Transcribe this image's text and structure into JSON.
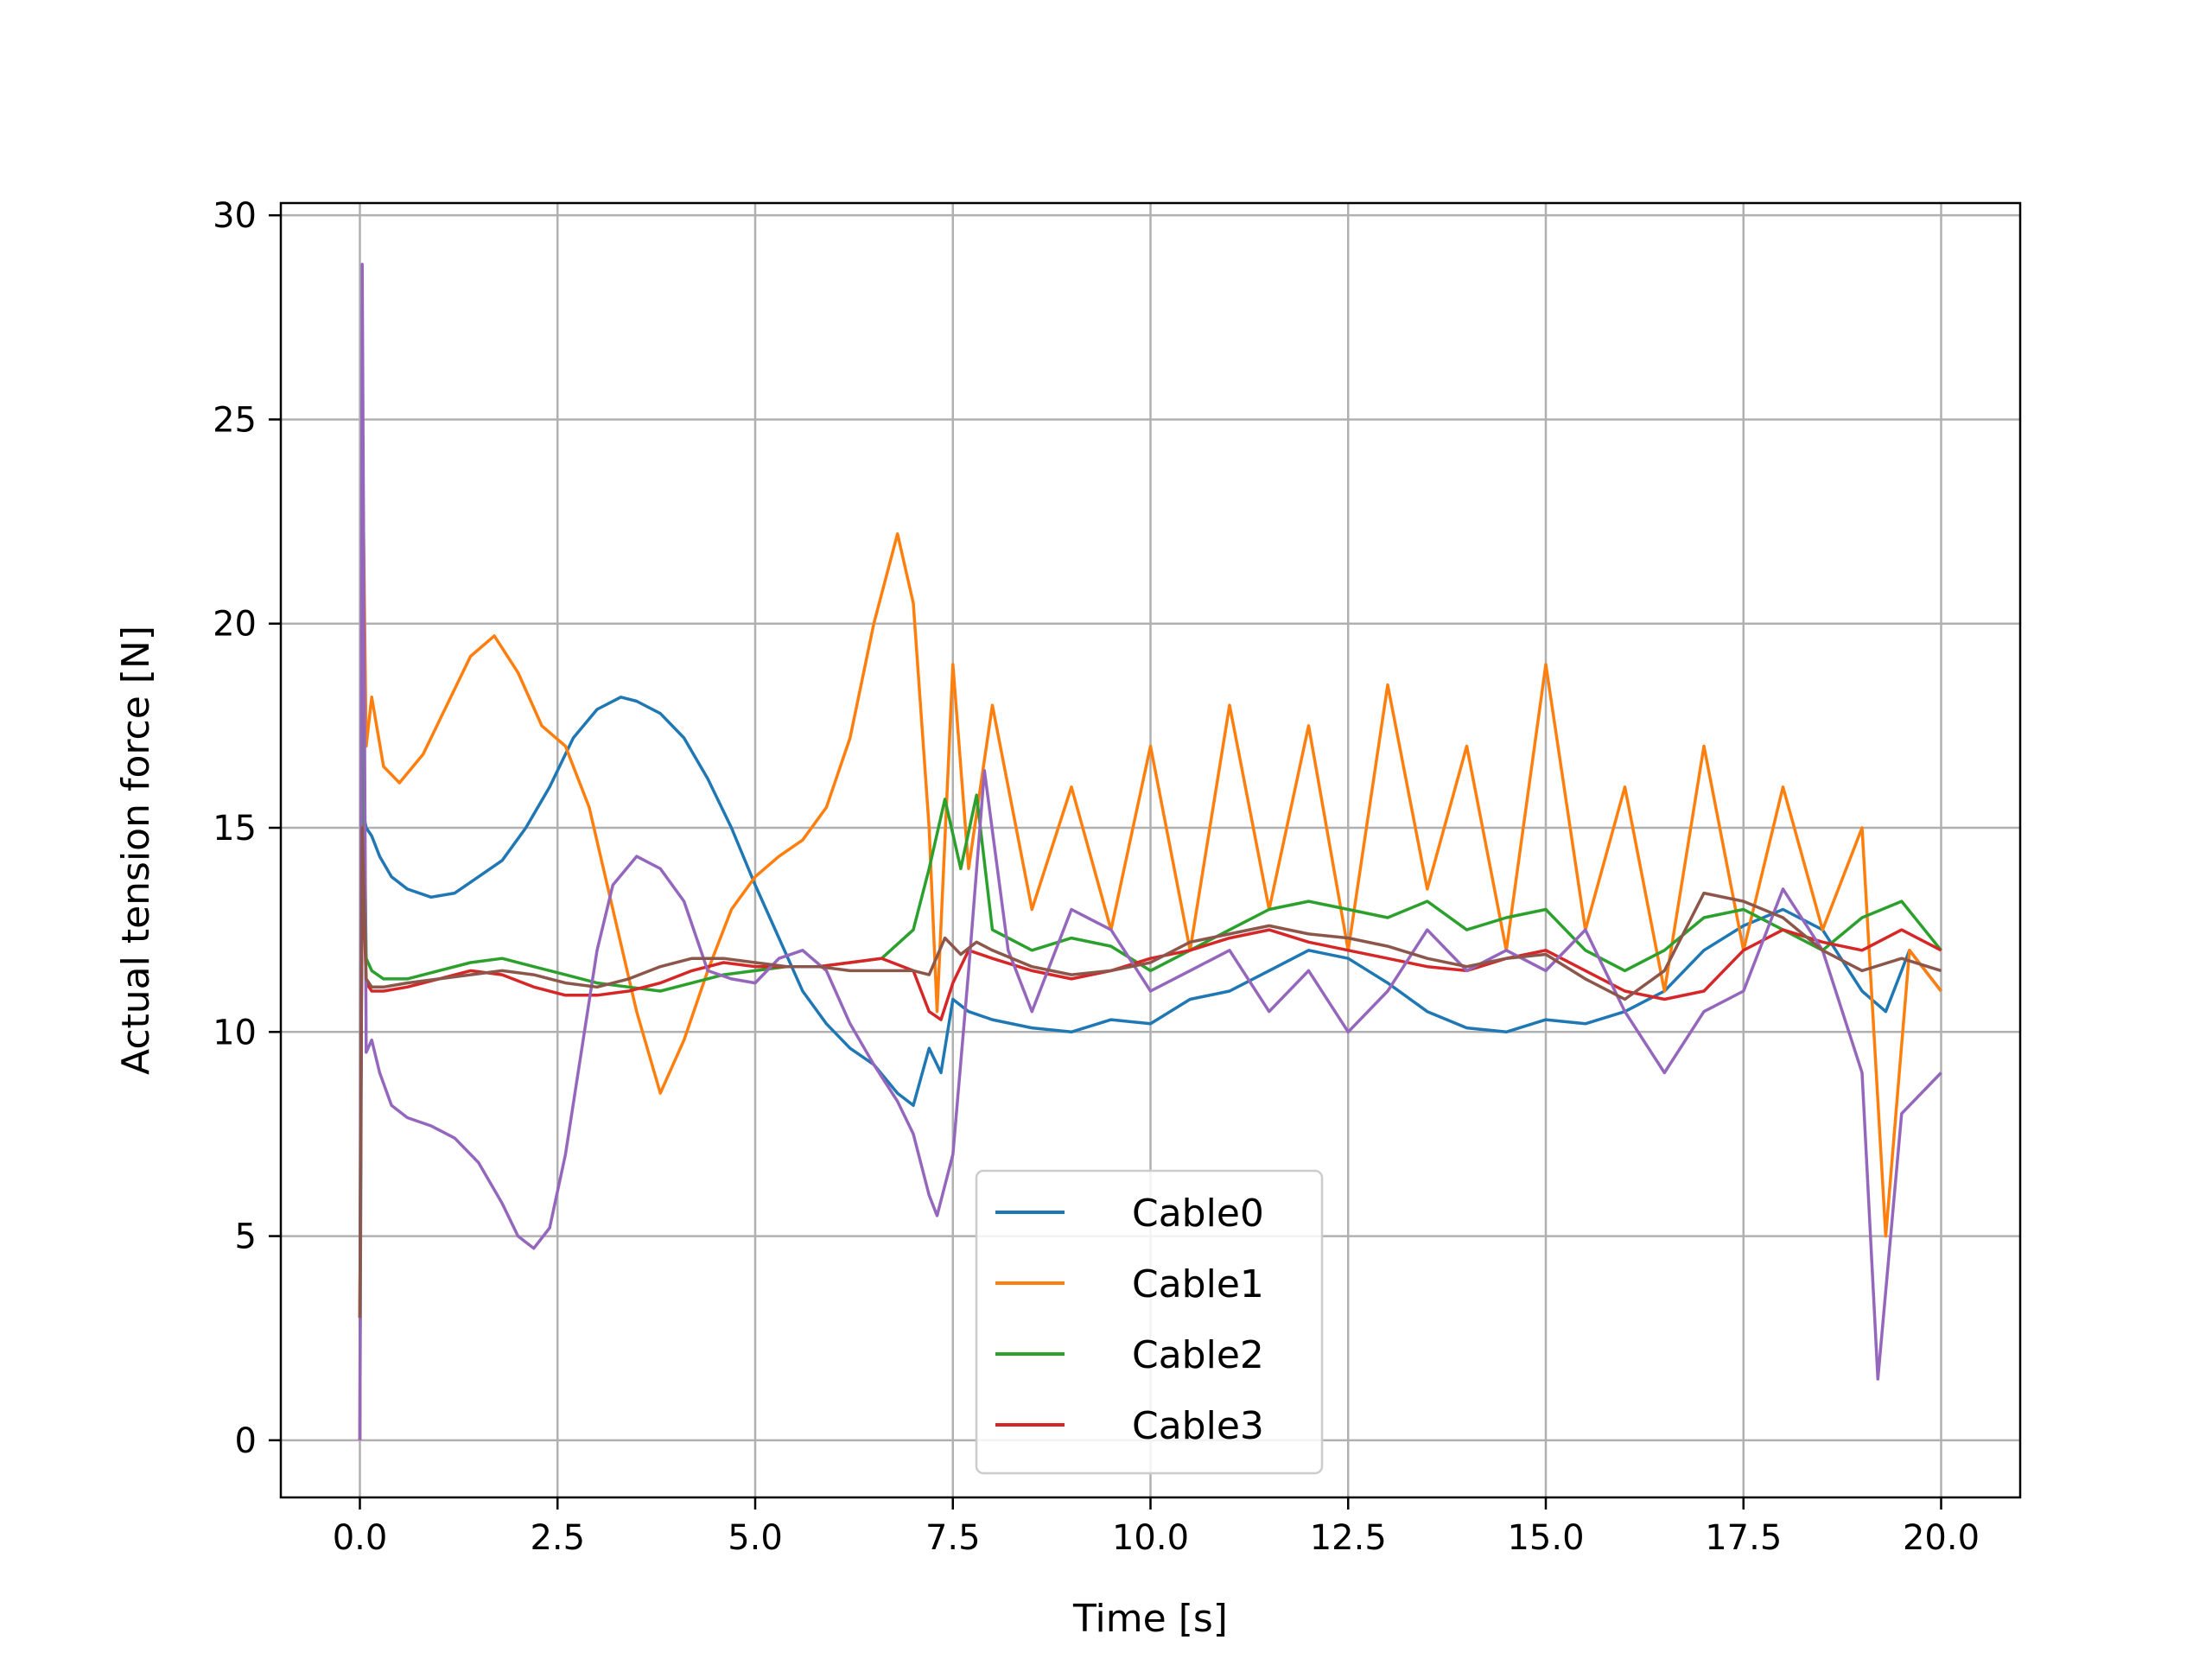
{
  "chart_data": {
    "type": "line",
    "title": "",
    "xlabel": "Time [s]",
    "ylabel": "Actual tension force [N]",
    "xlim": [
      -1.0,
      21.0
    ],
    "ylim": [
      -1.4,
      30.3
    ],
    "xticks": [
      0.0,
      2.5,
      5.0,
      7.5,
      10.0,
      12.5,
      15.0,
      17.5,
      20.0
    ],
    "xtick_labels": [
      "0.0",
      "2.5",
      "5.0",
      "7.5",
      "10.0",
      "12.5",
      "15.0",
      "17.5",
      "20.0"
    ],
    "yticks": [
      0,
      5,
      10,
      15,
      20,
      25,
      30
    ],
    "ytick_labels": [
      "0",
      "5",
      "10",
      "15",
      "20",
      "25",
      "30"
    ],
    "grid": true,
    "legend_position": "lower-center",
    "legend": [
      "Cable0",
      "Cable1",
      "Cable2",
      "Cable3"
    ],
    "series": [
      {
        "name": "Cable0",
        "color": "#1f77b4",
        "x": [
          0.0,
          0.03,
          0.08,
          0.15,
          0.25,
          0.4,
          0.6,
          0.9,
          1.2,
          1.5,
          1.8,
          2.1,
          2.4,
          2.7,
          3.0,
          3.3,
          3.5,
          3.8,
          4.1,
          4.4,
          4.7,
          5.0,
          5.3,
          5.6,
          5.9,
          6.2,
          6.5,
          6.8,
          7.0,
          7.2,
          7.35,
          7.5,
          7.7,
          8.0,
          8.5,
          9.0,
          9.5,
          10.0,
          10.5,
          11.0,
          11.5,
          12.0,
          12.5,
          13.0,
          13.5,
          14.0,
          14.5,
          15.0,
          15.5,
          16.0,
          16.5,
          17.0,
          17.5,
          18.0,
          18.5,
          19.0,
          19.3,
          19.6,
          20.0
        ],
        "y": [
          0.0,
          15.5,
          15.0,
          14.8,
          14.3,
          13.8,
          13.5,
          13.3,
          13.4,
          13.8,
          14.2,
          15.0,
          16.0,
          17.2,
          17.9,
          18.2,
          18.1,
          17.8,
          17.2,
          16.2,
          15.0,
          13.6,
          12.3,
          11.0,
          10.2,
          9.6,
          9.2,
          8.5,
          8.2,
          9.6,
          9.0,
          10.8,
          10.5,
          10.3,
          10.1,
          10.0,
          10.3,
          10.2,
          10.8,
          11.0,
          11.5,
          12.0,
          11.8,
          11.2,
          10.5,
          10.1,
          10.0,
          10.3,
          10.2,
          10.5,
          11.0,
          12.0,
          12.6,
          13.0,
          12.5,
          11.0,
          10.5,
          12.0,
          11.0
        ]
      },
      {
        "name": "Cable1",
        "color": "#ff7f0e",
        "x": [
          0.0,
          0.03,
          0.08,
          0.15,
          0.3,
          0.5,
          0.8,
          1.1,
          1.4,
          1.7,
          2.0,
          2.3,
          2.6,
          2.9,
          3.2,
          3.5,
          3.8,
          4.1,
          4.4,
          4.7,
          5.0,
          5.3,
          5.6,
          5.9,
          6.2,
          6.5,
          6.8,
          7.0,
          7.2,
          7.3,
          7.5,
          7.7,
          8.0,
          8.5,
          9.0,
          9.5,
          10.0,
          10.5,
          11.0,
          11.5,
          12.0,
          12.5,
          13.0,
          13.5,
          14.0,
          14.5,
          15.0,
          15.5,
          16.0,
          16.5,
          17.0,
          17.5,
          18.0,
          18.5,
          19.0,
          19.3,
          19.6,
          20.0
        ],
        "y": [
          0.0,
          25.0,
          17.0,
          18.2,
          16.5,
          16.1,
          16.8,
          18.0,
          19.2,
          19.7,
          18.8,
          17.5,
          17.0,
          15.5,
          13.0,
          10.5,
          8.5,
          9.8,
          11.5,
          13.0,
          13.8,
          14.3,
          14.7,
          15.5,
          17.2,
          20.0,
          22.2,
          20.5,
          15.0,
          10.5,
          19.0,
          14.0,
          18.0,
          13.0,
          16.0,
          12.5,
          17.0,
          12.0,
          18.0,
          13.0,
          17.5,
          12.0,
          18.5,
          13.5,
          17.0,
          12.0,
          19.0,
          12.5,
          16.0,
          11.0,
          17.0,
          12.0,
          16.0,
          12.5,
          15.0,
          5.0,
          12.0,
          11.0
        ]
      },
      {
        "name": "Cable2",
        "color": "#2ca02c",
        "x": [
          0.0,
          0.03,
          0.08,
          0.15,
          0.3,
          0.6,
          1.0,
          1.4,
          1.8,
          2.2,
          2.6,
          3.0,
          3.4,
          3.8,
          4.2,
          4.6,
          5.0,
          5.4,
          5.8,
          6.2,
          6.6,
          7.0,
          7.2,
          7.4,
          7.6,
          7.8,
          8.0,
          8.5,
          9.0,
          9.5,
          10.0,
          10.5,
          11.0,
          11.5,
          12.0,
          12.5,
          13.0,
          13.5,
          14.0,
          14.5,
          15.0,
          15.5,
          16.0,
          16.5,
          17.0,
          17.5,
          18.0,
          18.5,
          19.0,
          19.5,
          20.0
        ],
        "y": [
          3.0,
          19.5,
          11.8,
          11.5,
          11.3,
          11.3,
          11.5,
          11.7,
          11.8,
          11.6,
          11.4,
          11.2,
          11.1,
          11.0,
          11.2,
          11.4,
          11.5,
          11.6,
          11.6,
          11.7,
          11.8,
          12.5,
          14.0,
          15.7,
          14.0,
          15.8,
          12.5,
          12.0,
          12.3,
          12.1,
          11.5,
          12.0,
          12.5,
          13.0,
          13.2,
          13.0,
          12.8,
          13.2,
          12.5,
          12.8,
          13.0,
          12.0,
          11.5,
          12.0,
          12.8,
          13.0,
          12.5,
          12.0,
          12.8,
          13.2,
          12.0
        ]
      },
      {
        "name": "Cable3",
        "color": "#d62728",
        "x": [
          0.0,
          0.03,
          0.08,
          0.15,
          0.3,
          0.6,
          1.0,
          1.4,
          1.8,
          2.2,
          2.6,
          3.0,
          3.4,
          3.8,
          4.2,
          4.6,
          5.0,
          5.4,
          5.8,
          6.2,
          6.6,
          7.0,
          7.2,
          7.35,
          7.5,
          7.7,
          8.0,
          8.5,
          9.0,
          9.5,
          10.0,
          10.5,
          11.0,
          11.5,
          12.0,
          12.5,
          13.0,
          13.5,
          14.0,
          14.5,
          15.0,
          15.5,
          16.0,
          16.5,
          17.0,
          17.5,
          18.0,
          18.5,
          19.0,
          19.5,
          20.0
        ],
        "y": [
          3.0,
          14.5,
          11.2,
          11.0,
          11.0,
          11.1,
          11.3,
          11.5,
          11.4,
          11.1,
          10.9,
          10.9,
          11.0,
          11.2,
          11.5,
          11.7,
          11.6,
          11.6,
          11.6,
          11.7,
          11.8,
          11.5,
          10.5,
          10.3,
          11.2,
          12.0,
          11.8,
          11.5,
          11.3,
          11.5,
          11.8,
          12.0,
          12.3,
          12.5,
          12.2,
          12.0,
          11.8,
          11.6,
          11.5,
          11.8,
          12.0,
          11.5,
          11.0,
          10.8,
          11.0,
          12.0,
          12.5,
          12.2,
          12.0,
          12.5,
          12.0
        ]
      },
      {
        "name": "",
        "color": "#9467bd",
        "x": [
          0.0,
          0.03,
          0.08,
          0.15,
          0.25,
          0.4,
          0.6,
          0.9,
          1.2,
          1.5,
          1.8,
          2.0,
          2.2,
          2.4,
          2.6,
          2.8,
          3.0,
          3.2,
          3.5,
          3.8,
          4.1,
          4.4,
          4.7,
          5.0,
          5.3,
          5.6,
          5.9,
          6.2,
          6.5,
          6.8,
          7.0,
          7.2,
          7.3,
          7.5,
          7.7,
          7.9,
          8.2,
          8.5,
          9.0,
          9.5,
          10.0,
          10.5,
          11.0,
          11.5,
          12.0,
          12.5,
          13.0,
          13.5,
          14.0,
          14.5,
          15.0,
          15.5,
          16.0,
          16.5,
          17.0,
          17.5,
          18.0,
          18.5,
          19.0,
          19.2,
          19.5,
          20.0
        ],
        "y": [
          0.0,
          28.8,
          9.5,
          9.8,
          9.0,
          8.2,
          7.9,
          7.7,
          7.4,
          6.8,
          5.8,
          5.0,
          4.7,
          5.2,
          7.0,
          9.5,
          12.0,
          13.6,
          14.3,
          14.0,
          13.2,
          11.5,
          11.3,
          11.2,
          11.8,
          12.0,
          11.5,
          10.2,
          9.2,
          8.3,
          7.5,
          6.0,
          5.5,
          7.0,
          11.5,
          16.4,
          12.0,
          10.5,
          13.0,
          12.5,
          11.0,
          11.5,
          12.0,
          10.5,
          11.5,
          10.0,
          11.0,
          12.5,
          11.5,
          12.0,
          11.5,
          12.5,
          10.5,
          9.0,
          10.5,
          11.0,
          13.5,
          12.0,
          9.0,
          1.5,
          8.0,
          9.0
        ]
      },
      {
        "name": "",
        "color": "#8c564b",
        "x": [
          0.0,
          0.03,
          0.08,
          0.15,
          0.3,
          0.6,
          1.0,
          1.4,
          1.8,
          2.2,
          2.6,
          3.0,
          3.4,
          3.8,
          4.2,
          4.6,
          5.0,
          5.4,
          5.8,
          6.2,
          6.6,
          7.0,
          7.2,
          7.4,
          7.6,
          7.8,
          8.0,
          8.5,
          9.0,
          9.5,
          10.0,
          10.5,
          11.0,
          11.5,
          12.0,
          12.5,
          13.0,
          13.5,
          14.0,
          14.5,
          15.0,
          15.5,
          16.0,
          16.5,
          17.0,
          17.5,
          18.0,
          18.5,
          19.0,
          19.5,
          20.0
        ],
        "y": [
          3.0,
          15.0,
          11.3,
          11.1,
          11.1,
          11.2,
          11.3,
          11.4,
          11.5,
          11.4,
          11.2,
          11.1,
          11.3,
          11.6,
          11.8,
          11.8,
          11.7,
          11.6,
          11.6,
          11.5,
          11.5,
          11.5,
          11.4,
          12.3,
          11.9,
          12.2,
          12.0,
          11.6,
          11.4,
          11.5,
          11.7,
          12.2,
          12.4,
          12.6,
          12.4,
          12.3,
          12.1,
          11.8,
          11.6,
          11.8,
          11.9,
          11.3,
          10.8,
          11.5,
          13.4,
          13.2,
          12.8,
          12.0,
          11.5,
          11.8,
          11.5
        ]
      }
    ]
  }
}
